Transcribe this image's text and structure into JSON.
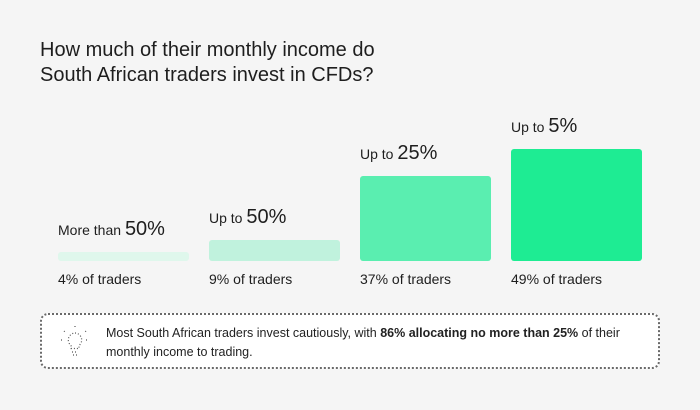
{
  "title_lines": [
    "How much of their monthly income do",
    "South African traders invest in CFDs?"
  ],
  "chart_data": {
    "type": "bar",
    "title": "How much of their monthly income do South African traders invest in CFDs?",
    "categories": [
      {
        "prefix": "More than",
        "value_label": "50%"
      },
      {
        "prefix": "Up to",
        "value_label": "50%"
      },
      {
        "prefix": "Up to",
        "value_label": "25%"
      },
      {
        "prefix": "Up to",
        "value_label": "5%"
      }
    ],
    "values": [
      4,
      9,
      37,
      49
    ],
    "value_labels": [
      "4% of traders",
      "9% of traders",
      "37% of traders",
      "49% of traders"
    ],
    "colors": [
      "#dff7ec",
      "#c0f2dd",
      "#5aeeb0",
      "#1eec93"
    ],
    "unit": "% of traders",
    "xlabel": "",
    "ylabel": "",
    "ylim": [
      0,
      49
    ],
    "grid": false
  },
  "callout": {
    "icon": "lightbulb-icon",
    "text_before": "Most South African traders invest cautiously, with ",
    "text_bold": "86% allocating no more than 25%",
    "text_after": " of their monthly income to trading."
  }
}
